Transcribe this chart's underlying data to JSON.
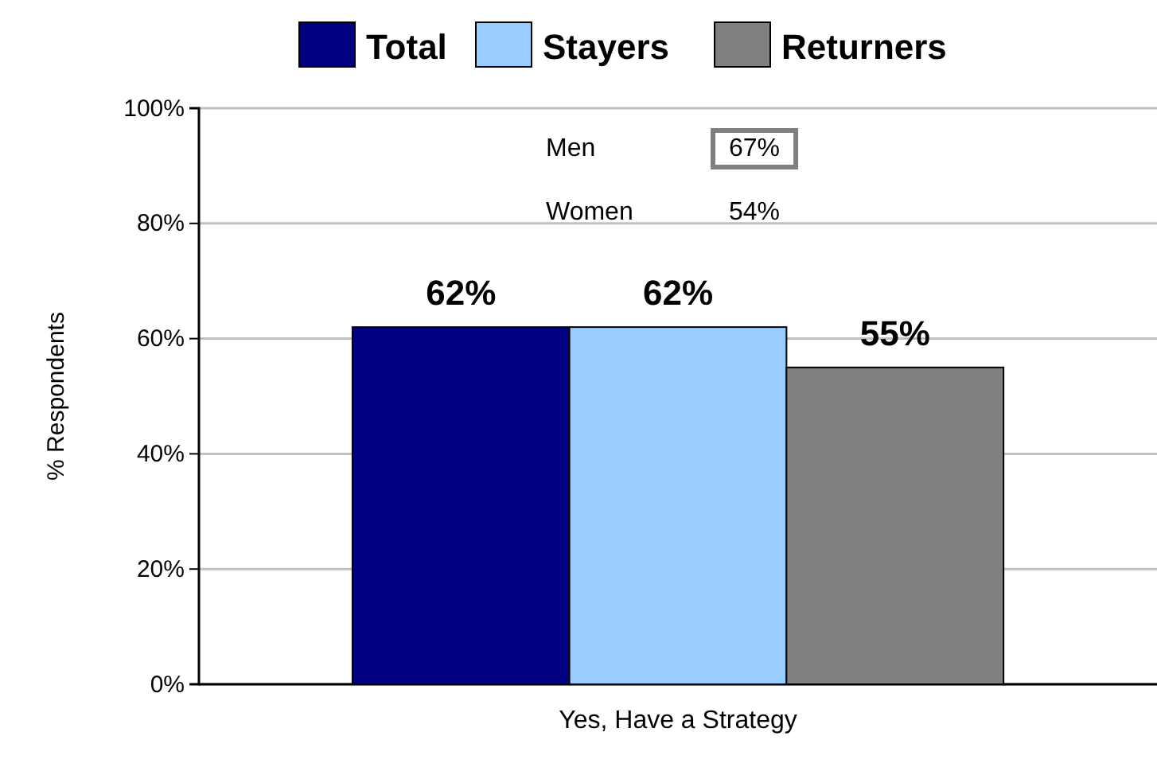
{
  "chart_data": {
    "type": "bar",
    "categories": [
      "Yes, Have a Strategy"
    ],
    "series": [
      {
        "name": "Total",
        "color": "#000080",
        "values": [
          62
        ],
        "value_labels": [
          "62%"
        ]
      },
      {
        "name": "Stayers",
        "color": "#99ccff",
        "values": [
          62
        ],
        "value_labels": [
          "62%"
        ]
      },
      {
        "name": "Returners",
        "color": "#808080",
        "values": [
          55
        ],
        "value_labels": [
          "55%"
        ]
      }
    ],
    "ylabel": "% Respondents",
    "ylim": [
      0,
      100
    ],
    "yticks": [
      {
        "value": 0,
        "label": "0%"
      },
      {
        "value": 20,
        "label": "20%"
      },
      {
        "value": 40,
        "label": "40%"
      },
      {
        "value": 60,
        "label": "60%"
      },
      {
        "value": 80,
        "label": "80%"
      },
      {
        "value": 100,
        "label": "100%"
      }
    ],
    "grid": "y",
    "legend": "top",
    "annotations": [
      "Men",
      "67%",
      "Women",
      "54%"
    ]
  }
}
